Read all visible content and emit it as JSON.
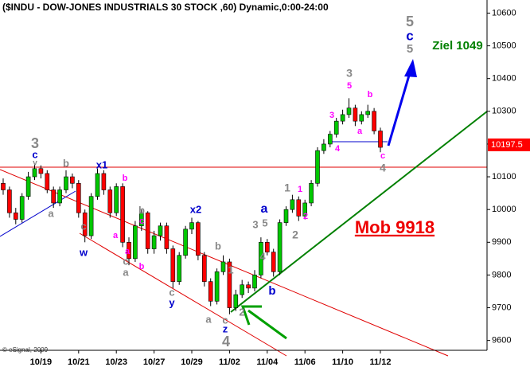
{
  "chart_data": {
    "type": "candlestick",
    "title": "($INDU - DOW-JONES INDUSTRIALS 30 STOCK ,60) Dynamic,0:00-24:00",
    "credit": "© eSignal, 2009",
    "categories": [
      null,
      null,
      null,
      null,
      null,
      null,
      "10/19",
      null,
      null,
      null,
      null,
      null,
      "10/21",
      null,
      null,
      null,
      null,
      null,
      "10/23",
      null,
      null,
      null,
      null,
      null,
      "10/27",
      null,
      null,
      null,
      null,
      null,
      "10/29",
      null,
      null,
      null,
      null,
      null,
      "11/02",
      null,
      null,
      null,
      null,
      null,
      "11/04",
      null,
      null,
      null,
      null,
      null,
      "11/06",
      null,
      null,
      null,
      null,
      null,
      "11/10",
      null,
      null,
      null,
      null,
      null,
      "11/12"
    ],
    "open": [
      10080,
      10060,
      9990,
      9970,
      10040,
      10100,
      10125,
      10110,
      10060,
      10020,
      10060,
      10100,
      10080,
      9990,
      9920,
      10040,
      10110,
      10060,
      9990,
      10070,
      9900,
      9850,
      9950,
      9990,
      9880,
      9920,
      9950,
      9880,
      9780,
      9860,
      9940,
      9960,
      9860,
      9780,
      9720,
      9810,
      9840,
      9700,
      9740,
      9770,
      9760,
      9800,
      9900,
      9870,
      9810,
      9960,
      10000,
      10030,
      9980,
      10020,
      10080,
      10180,
      10200,
      10230,
      10270,
      10290,
      10310,
      10270,
      10290,
      10300,
      10240
    ],
    "high": [
      10095,
      10070,
      10005,
      10050,
      10115,
      10140,
      10135,
      10120,
      10070,
      10070,
      10120,
      10110,
      10090,
      10000,
      10050,
      10125,
      10120,
      10070,
      10080,
      10080,
      9915,
      9965,
      10000,
      9995,
      9935,
      9960,
      9960,
      9890,
      9870,
      9950,
      9975,
      9965,
      9870,
      9790,
      9820,
      9860,
      9850,
      9755,
      9785,
      9780,
      9815,
      9915,
      9910,
      9880,
      9970,
      10010,
      10045,
      10040,
      10030,
      10090,
      10190,
      10215,
      10240,
      10280,
      10305,
      10340,
      10320,
      10300,
      10320,
      10310,
      10250
    ],
    "low": [
      10045,
      9975,
      9955,
      9960,
      10030,
      10090,
      10095,
      10050,
      10005,
      10010,
      10050,
      10065,
      9975,
      9900,
      9910,
      10030,
      10045,
      9975,
      9980,
      9885,
      9830,
      9840,
      9935,
      9865,
      9865,
      9905,
      9865,
      9760,
      9770,
      9850,
      9925,
      9845,
      9765,
      9705,
      9710,
      9800,
      9680,
      9690,
      9730,
      9745,
      9750,
      9790,
      9860,
      9795,
      9800,
      9950,
      9990,
      9965,
      9970,
      10010,
      10070,
      10170,
      10190,
      10220,
      10260,
      10280,
      10255,
      10260,
      10280,
      10230,
      10175
    ],
    "close": [
      10060,
      9990,
      9970,
      10040,
      10100,
      10125,
      10110,
      10060,
      10020,
      10060,
      10100,
      10080,
      9990,
      9920,
      10040,
      10110,
      10060,
      9990,
      10070,
      9900,
      9850,
      9950,
      9990,
      9880,
      9920,
      9950,
      9880,
      9780,
      9860,
      9940,
      9960,
      9860,
      9780,
      9720,
      9810,
      9840,
      9700,
      9740,
      9770,
      9760,
      9800,
      9900,
      9870,
      9810,
      9960,
      10000,
      10030,
      9980,
      10020,
      10080,
      10180,
      10200,
      10230,
      10270,
      10290,
      10310,
      10270,
      10290,
      10300,
      10240,
      10190
    ],
    "up_color": "#00c800",
    "down_color": "#ff0000",
    "ylim": [
      9570,
      10640
    ],
    "yticks": [
      9600,
      9700,
      9800,
      9900,
      10000,
      10100,
      10200,
      10300,
      10400,
      10500,
      10600
    ],
    "grid": false,
    "last_price": 10197.5,
    "annotations": [
      {
        "text": "3",
        "color": "#888888"
      },
      {
        "text": "c",
        "color": "#0000cc"
      },
      {
        "text": "v",
        "color": "#888888"
      },
      {
        "text": "b",
        "color": "#888888"
      },
      {
        "text": "a",
        "color": "#888888"
      },
      {
        "text": "x1",
        "color": "#0000cc"
      },
      {
        "text": "c",
        "color": "#888888"
      },
      {
        "text": "w",
        "color": "#0000cc"
      },
      {
        "text": "b",
        "color": "#ff00ff"
      },
      {
        "text": "a",
        "color": "#ff00ff"
      },
      {
        "text": "b",
        "color": "#888888"
      },
      {
        "text": "c",
        "color": "#ff00ff"
      },
      {
        "text": "a",
        "color": "#ff00ff"
      },
      {
        "text": "c",
        "color": "#888888"
      },
      {
        "text": "b",
        "color": "#ff00ff"
      },
      {
        "text": "a",
        "color": "#888888"
      },
      {
        "text": "x2",
        "color": "#0000cc"
      },
      {
        "text": "c",
        "color": "#888888"
      },
      {
        "text": "y",
        "color": "#0000cc"
      },
      {
        "text": "b",
        "color": "#888888"
      },
      {
        "text": "1",
        "color": "#888888"
      },
      {
        "text": "a",
        "color": "#888888"
      },
      {
        "text": "c",
        "color": "#888888"
      },
      {
        "text": "z",
        "color": "#0000cc"
      },
      {
        "text": "4",
        "color": "#888888"
      },
      {
        "text": "2",
        "color": "#888888"
      },
      {
        "text": "3",
        "color": "#888888"
      },
      {
        "text": "5",
        "color": "#888888"
      },
      {
        "text": "a",
        "color": "#0000cc"
      },
      {
        "text": "4",
        "color": "#888888"
      },
      {
        "text": "b",
        "color": "#0000cc"
      },
      {
        "text": "1",
        "color": "#888888"
      },
      {
        "text": "1",
        "color": "#ff00ff"
      },
      {
        "text": "2",
        "color": "#888888"
      },
      {
        "text": "2",
        "color": "#ff00ff"
      },
      {
        "text": "3",
        "color": "#888888"
      },
      {
        "text": "5",
        "color": "#ff00ff"
      },
      {
        "text": "3",
        "color": "#ff00ff"
      },
      {
        "text": "a",
        "color": "#ff00ff"
      },
      {
        "text": "b",
        "color": "#ff00ff"
      },
      {
        "text": "4",
        "color": "#ff00ff"
      },
      {
        "text": "c",
        "color": "#ff00ff"
      },
      {
        "text": "4",
        "color": "#888888"
      },
      {
        "text": "5",
        "color": "#888888"
      },
      {
        "text": "c",
        "color": "#0000cc"
      },
      {
        "text": "5",
        "color": "#888888"
      },
      {
        "text": "Ziel 1049",
        "color": "#008000"
      },
      {
        "text": "Mob 9918",
        "color": "#ee0000"
      }
    ]
  }
}
